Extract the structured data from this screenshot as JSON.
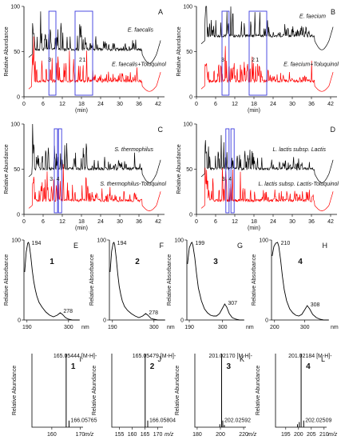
{
  "chart_data": [
    {
      "id": "A",
      "type": "line",
      "panel_label": "A",
      "ylabel": "Relative Abundance",
      "xlabel": "(min)",
      "xlim": [
        0,
        44
      ],
      "ylim": [
        0,
        100
      ],
      "xticks": [
        "0",
        "6",
        "12",
        "18",
        "24",
        "30",
        "36",
        "42"
      ],
      "yticks": [
        "0",
        "50",
        "100"
      ],
      "series": [
        {
          "name": "E. faecalis",
          "color": "#000000",
          "offset": 47
        },
        {
          "name": "E. faecalis+Toluquinol",
          "color": "#ff0000",
          "offset": 12
        }
      ],
      "peaks": [
        {
          "label": "3",
          "x": 8.8
        },
        {
          "label": "2",
          "x": 18.5
        },
        {
          "label": "1",
          "x": 19.6
        }
      ],
      "boxes": [
        [
          7.8,
          10.0
        ],
        [
          16.0,
          21.5
        ]
      ]
    },
    {
      "id": "B",
      "type": "line",
      "panel_label": "B",
      "ylabel": "Relative Abundance",
      "xlabel": "(min)",
      "xlim": [
        0,
        44
      ],
      "ylim": [
        0,
        100
      ],
      "xticks": [
        "0",
        "6",
        "12",
        "18",
        "24",
        "30",
        "36",
        "42"
      ],
      "yticks": [
        "0",
        "50",
        "100"
      ],
      "series": [
        {
          "name": "E. faecium",
          "color": "#000000",
          "offset": 62
        },
        {
          "name": "E. faecium+Toluquinol",
          "color": "#ff0000",
          "offset": 12
        }
      ],
      "peaks": [
        {
          "label": "3",
          "x": 9.0
        },
        {
          "label": "2",
          "x": 18.5
        },
        {
          "label": "1",
          "x": 19.8
        }
      ],
      "boxes": [
        [
          8.0,
          10.2
        ],
        [
          16.5,
          22.0
        ]
      ]
    },
    {
      "id": "C",
      "type": "line",
      "panel_label": "C",
      "ylabel": "Relative Abundance",
      "xlabel": "(min)",
      "xlim": [
        0,
        44
      ],
      "ylim": [
        0,
        100
      ],
      "xticks": [
        "0",
        "6",
        "12",
        "18",
        "24",
        "30",
        "36",
        "42"
      ],
      "yticks": [
        "0",
        "50",
        "100"
      ],
      "series": [
        {
          "name": "S. thermophilus",
          "color": "#000000",
          "offset": 45
        },
        {
          "name": "S. thermophilus-Toluquinol",
          "color": "#ff0000",
          "offset": 10
        }
      ],
      "peaks": [
        {
          "label": "3",
          "x": 9.3
        },
        {
          "label": "4",
          "x": 11.4
        }
      ],
      "boxes": [
        [
          9.5,
          10.5
        ],
        [
          10.8,
          11.8
        ]
      ]
    },
    {
      "id": "D",
      "type": "line",
      "panel_label": "D",
      "ylabel": "Relative Abundance",
      "xlabel": "(min)",
      "xlim": [
        0,
        44
      ],
      "ylim": [
        0,
        100
      ],
      "xticks": [
        "0",
        "6",
        "12",
        "18",
        "24",
        "30",
        "36",
        "42"
      ],
      "yticks": [
        "0",
        "50",
        "100"
      ],
      "series": [
        {
          "name": "L. lactis subsp. Lactis",
          "color": "#000000",
          "offset": 45
        },
        {
          "name": "L. lactis subsp. Lactis-Toluquinol",
          "color": "#ff0000",
          "offset": 10
        }
      ],
      "peaks": [
        {
          "label": "3",
          "x": 9.2
        },
        {
          "label": "4",
          "x": 11.3
        }
      ],
      "boxes": [
        [
          9.2,
          10.2
        ],
        [
          10.8,
          11.8
        ]
      ]
    },
    {
      "id": "E",
      "type": "line",
      "panel_label": "E",
      "compound": "1",
      "ylabel": "Relative Absorbance",
      "xlabel": "nm",
      "xlim": [
        182,
        330
      ],
      "ylim": [
        0,
        100
      ],
      "xticks": [
        "190",
        "300"
      ],
      "yticks": [
        "0",
        "100"
      ],
      "peak_labels": [
        {
          "x": 194,
          "y": 97,
          "label": "194"
        },
        {
          "x": 278,
          "y": 12,
          "label": "278"
        }
      ],
      "x": [
        184,
        188,
        192,
        194,
        196,
        200,
        204,
        208,
        212,
        216,
        222,
        230,
        240,
        250,
        260,
        270,
        278,
        284,
        292,
        300,
        310,
        320,
        328
      ],
      "y": [
        60,
        85,
        96,
        97,
        94,
        80,
        62,
        48,
        38,
        30,
        22,
        16,
        10,
        6,
        4,
        6,
        9,
        7,
        3,
        1,
        0,
        0,
        0
      ]
    },
    {
      "id": "F",
      "type": "line",
      "panel_label": "F",
      "compound": "2",
      "ylabel": "Relative Absorbance",
      "xlabel": "nm",
      "xlim": [
        182,
        330
      ],
      "ylim": [
        0,
        100
      ],
      "xticks": [
        "190",
        "300"
      ],
      "yticks": [
        "0",
        "100"
      ],
      "peak_labels": [
        {
          "x": 194,
          "y": 97,
          "label": "194"
        },
        {
          "x": 278,
          "y": 10,
          "label": "278"
        }
      ],
      "x": [
        184,
        188,
        192,
        194,
        196,
        200,
        204,
        208,
        212,
        216,
        222,
        230,
        240,
        250,
        260,
        270,
        278,
        284,
        292,
        300,
        310,
        320,
        328
      ],
      "y": [
        60,
        86,
        96,
        97,
        94,
        78,
        58,
        42,
        32,
        24,
        17,
        12,
        8,
        5,
        3,
        5,
        8,
        6,
        2,
        1,
        0,
        0,
        0
      ]
    },
    {
      "id": "G",
      "type": "line",
      "panel_label": "G",
      "compound": "3",
      "ylabel": "Relative Absorbance",
      "xlabel": "nm",
      "xlim": [
        182,
        372
      ],
      "ylim": [
        0,
        100
      ],
      "xticks": [
        "190",
        "300"
      ],
      "yticks": [
        "0",
        "100"
      ],
      "peak_labels": [
        {
          "x": 199,
          "y": 97,
          "label": "199"
        },
        {
          "x": 307,
          "y": 22,
          "label": "307"
        }
      ],
      "x": [
        184,
        190,
        196,
        199,
        202,
        208,
        214,
        220,
        230,
        240,
        250,
        260,
        270,
        280,
        290,
        300,
        307,
        314,
        322,
        332,
        344,
        356,
        370
      ],
      "y": [
        70,
        90,
        96,
        97,
        93,
        78,
        58,
        40,
        24,
        14,
        9,
        6,
        5,
        5,
        8,
        15,
        20,
        16,
        8,
        3,
        1,
        0,
        0
      ]
    },
    {
      "id": "H",
      "type": "line",
      "panel_label": "H",
      "compound": "4",
      "ylabel": "Relative Absorbance",
      "xlabel": "nm",
      "xlim": [
        190,
        380
      ],
      "ylim": [
        0,
        100
      ],
      "xticks": [
        "200",
        "300"
      ],
      "yticks": [
        "0",
        "100"
      ],
      "peak_labels": [
        {
          "x": 210,
          "y": 97,
          "label": "210"
        },
        {
          "x": 308,
          "y": 20,
          "label": "308"
        }
      ],
      "x": [
        192,
        198,
        204,
        210,
        214,
        220,
        226,
        232,
        240,
        250,
        260,
        270,
        280,
        290,
        300,
        308,
        316,
        326,
        338,
        350,
        362,
        378
      ],
      "y": [
        80,
        92,
        96,
        97,
        92,
        75,
        55,
        38,
        24,
        14,
        9,
        6,
        5,
        7,
        13,
        18,
        14,
        7,
        3,
        1,
        0,
        0
      ]
    },
    {
      "id": "I",
      "type": "bar",
      "panel_label": "I",
      "compound": "1",
      "ylabel": "Relative Abundance",
      "xlabel": "m/z",
      "xlim": [
        153,
        171
      ],
      "ylim": [
        0,
        100
      ],
      "xticks": [
        "160",
        "170"
      ],
      "peaks": [
        {
          "mz": 165.05444,
          "intensity": 100,
          "label": "165.05444 [M-H]-"
        },
        {
          "mz": 166.05765,
          "intensity": 9,
          "label": "166.05765"
        }
      ]
    },
    {
      "id": "J",
      "type": "bar",
      "panel_label": "J",
      "compound": "2",
      "ylabel": "Relative Abundance",
      "xlabel": "m/z",
      "xlim": [
        152,
        172
      ],
      "ylim": [
        0,
        100
      ],
      "xticks": [
        "155",
        "160",
        "165",
        "170"
      ],
      "peaks": [
        {
          "mz": 165.05479,
          "intensity": 100,
          "label": "165.05479 [M-H]-"
        },
        {
          "mz": 166.05804,
          "intensity": 9,
          "label": "166.05804"
        }
      ]
    },
    {
      "id": "K",
      "type": "bar",
      "panel_label": "K",
      "compound": "3",
      "ylabel": "Relative Abundance",
      "xlabel": "m/z",
      "xlim": [
        178,
        222
      ],
      "ylim": [
        0,
        100
      ],
      "xticks": [
        "180",
        "200",
        "220"
      ],
      "peaks": [
        {
          "mz": 201.0217,
          "intensity": 100,
          "label": "201.02170 [M-H]-"
        },
        {
          "mz": 202.02592,
          "intensity": 9,
          "label": "202.02592"
        },
        {
          "mz": 199.5,
          "intensity": 4,
          "label": ""
        },
        {
          "mz": 203.4,
          "intensity": 3,
          "label": ""
        }
      ]
    },
    {
      "id": "L",
      "type": "bar",
      "panel_label": "L",
      "compound": "4",
      "ylabel": "Relative Abundance",
      "xlabel": "m/z",
      "xlim": [
        191,
        211
      ],
      "ylim": [
        0,
        100
      ],
      "xticks": [
        "195",
        "200",
        "205",
        "210"
      ],
      "peaks": [
        {
          "mz": 201.02184,
          "intensity": 100,
          "label": "201.02184 [M-H]-"
        },
        {
          "mz": 202.02509,
          "intensity": 9,
          "label": "202.02509"
        },
        {
          "mz": 200.3,
          "intensity": 7,
          "label": ""
        },
        {
          "mz": 199.6,
          "intensity": 4,
          "label": ""
        }
      ]
    }
  ]
}
